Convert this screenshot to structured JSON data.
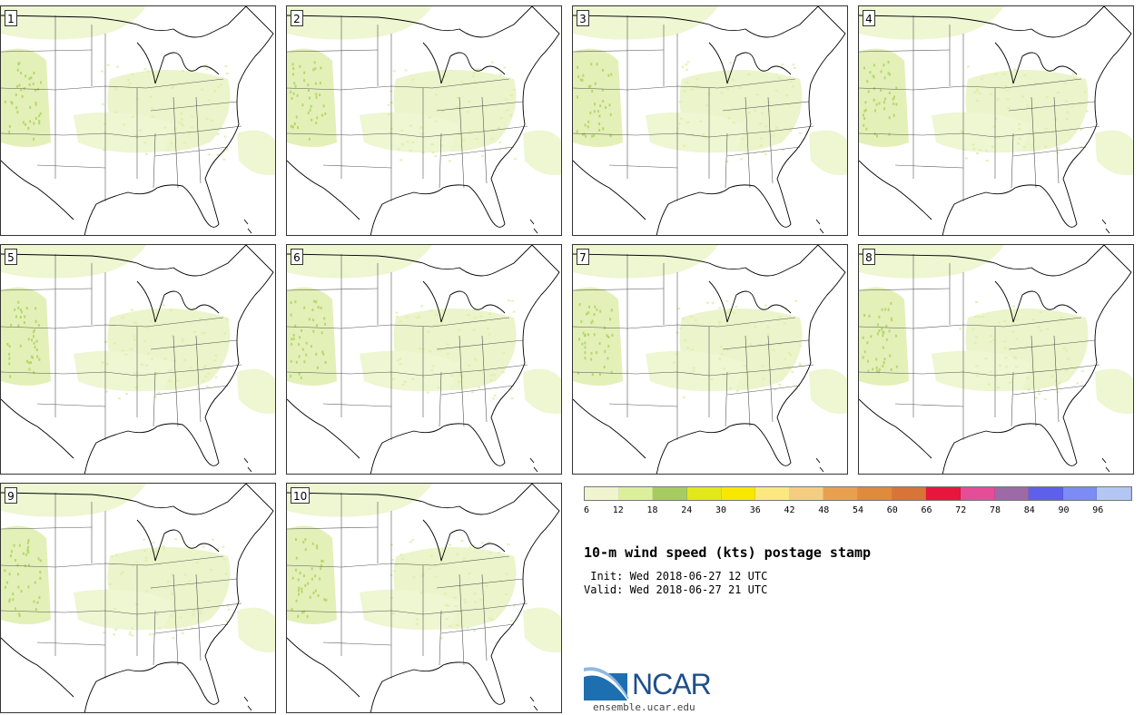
{
  "panels": [
    {
      "label": "1"
    },
    {
      "label": "2"
    },
    {
      "label": "3"
    },
    {
      "label": "4"
    },
    {
      "label": "5"
    },
    {
      "label": "6"
    },
    {
      "label": "7"
    },
    {
      "label": "8"
    },
    {
      "label": "9"
    },
    {
      "label": "10"
    }
  ],
  "colorbar": {
    "colors": [
      "#f0f5cf",
      "#dcf09c",
      "#a6cc60",
      "#e3e81a",
      "#f8e800",
      "#fde880",
      "#f5cd80",
      "#e8a04e",
      "#e08a3c",
      "#d87436",
      "#e8163c",
      "#e44d98",
      "#9c6aa6",
      "#5e60ec",
      "#7c8cf4",
      "#b4c6f4"
    ],
    "ticks": [
      "6",
      "12",
      "18",
      "24",
      "30",
      "36",
      "42",
      "48",
      "54",
      "60",
      "66",
      "72",
      "78",
      "84",
      "90",
      "96"
    ]
  },
  "title": "10-m wind speed (kts) postage stamp",
  "init_line": " Init: Wed 2018-06-27 12 UTC",
  "valid_line": "Valid: Wed 2018-06-27 21 UTC",
  "logo_text": "NCAR",
  "site": "ensemble.ucar.edu"
}
